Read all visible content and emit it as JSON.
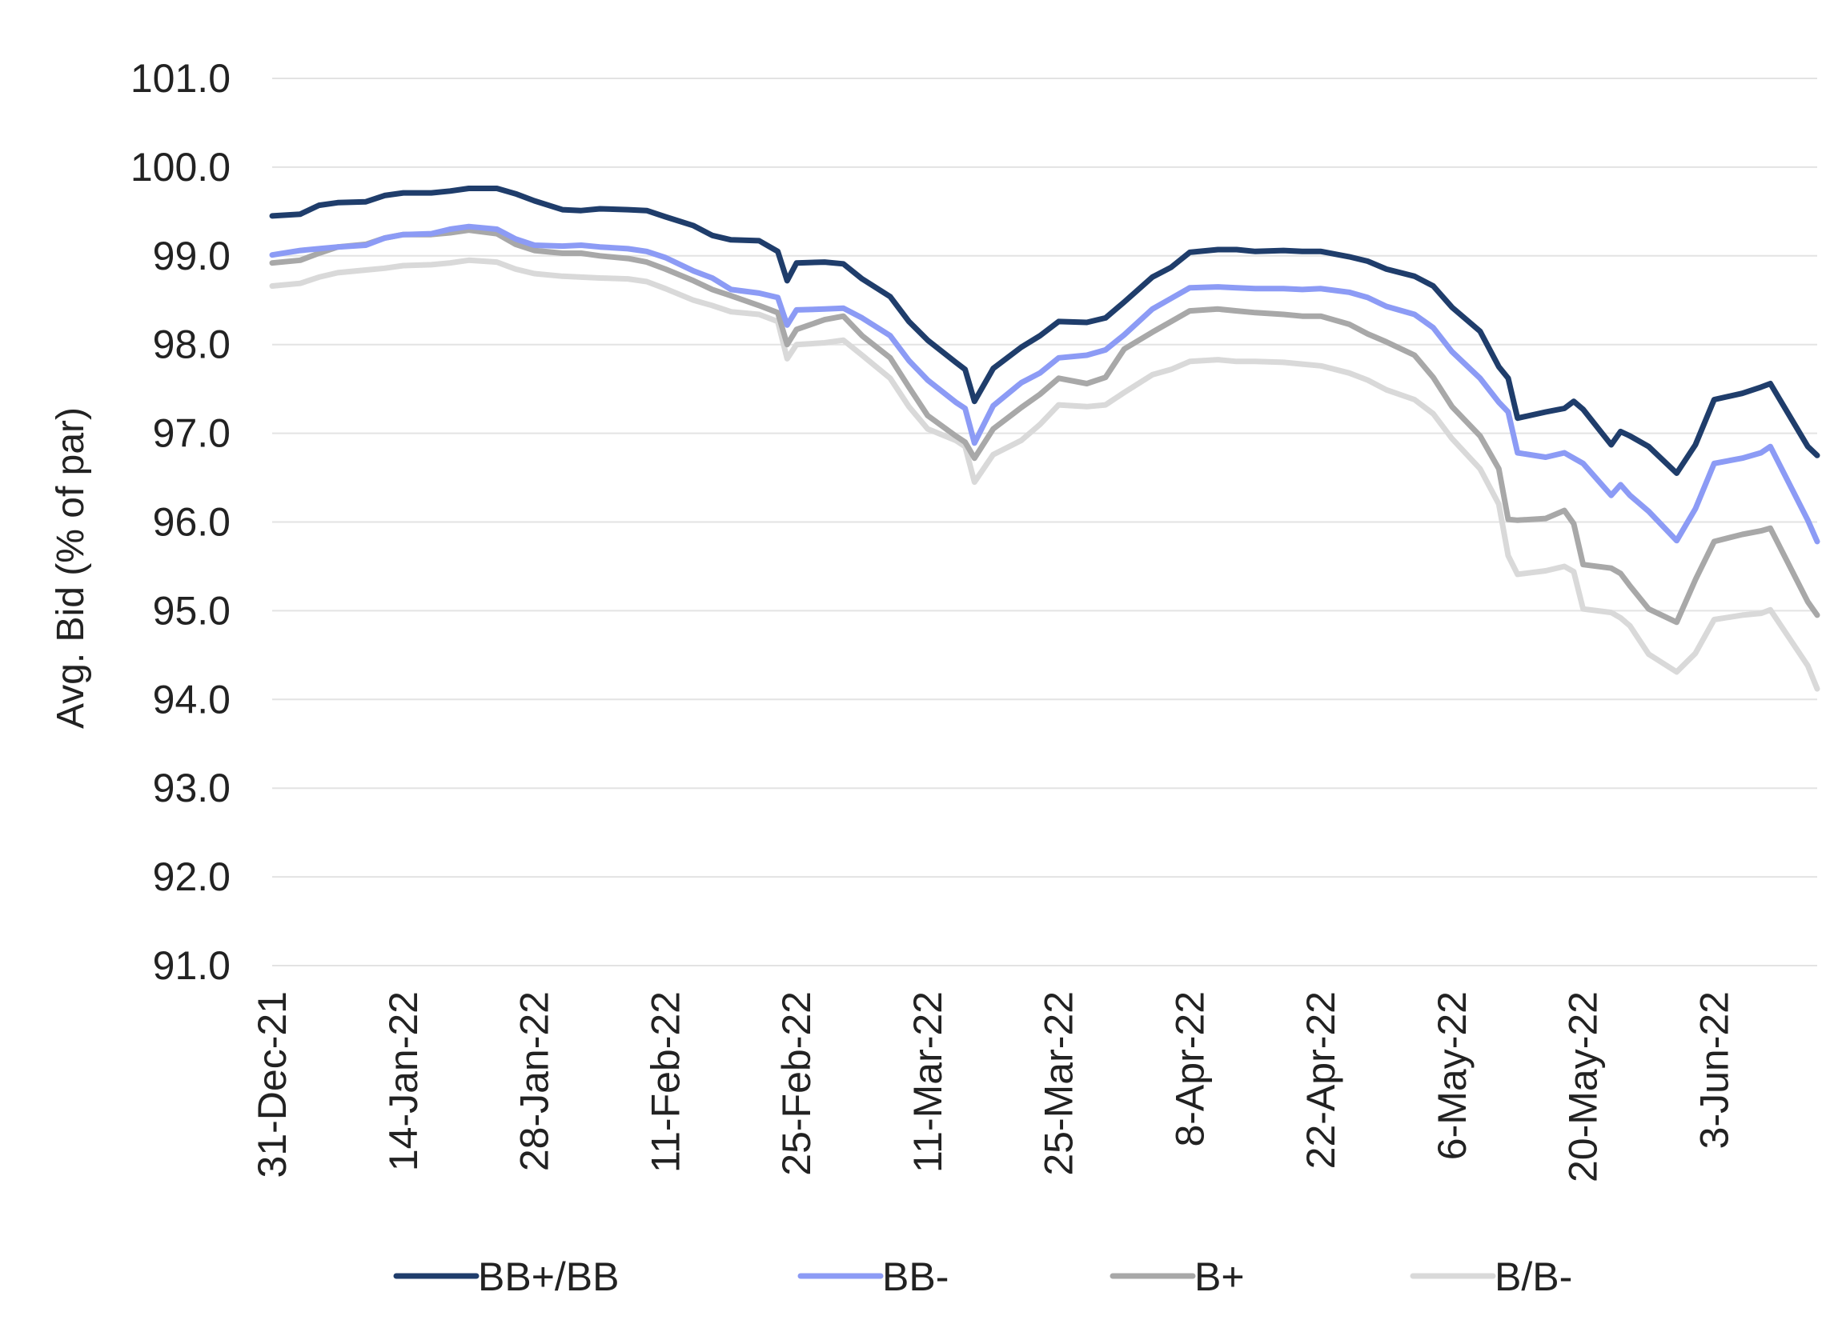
{
  "chart_data": {
    "type": "line",
    "title": "",
    "xlabel": "",
    "ylabel": "Avg. Bid (% of par)",
    "ylim": [
      91.0,
      101.0
    ],
    "yticks": [
      "101.0",
      "100.0",
      "99.0",
      "98.0",
      "97.0",
      "96.0",
      "95.0",
      "94.0",
      "93.0",
      "92.0",
      "91.0"
    ],
    "xlim": [
      "2021-12-31",
      "2022-06-14"
    ],
    "xticks": [
      {
        "date": "2021-12-31",
        "label": "31-Dec-21"
      },
      {
        "date": "2022-01-14",
        "label": "14-Jan-22"
      },
      {
        "date": "2022-01-28",
        "label": "28-Jan-22"
      },
      {
        "date": "2022-02-11",
        "label": "11-Feb-22"
      },
      {
        "date": "2022-02-25",
        "label": "25-Feb-22"
      },
      {
        "date": "2022-03-11",
        "label": "11-Mar-22"
      },
      {
        "date": "2022-03-25",
        "label": "25-Mar-22"
      },
      {
        "date": "2022-04-08",
        "label": "8-Apr-22"
      },
      {
        "date": "2022-04-22",
        "label": "22-Apr-22"
      },
      {
        "date": "2022-05-06",
        "label": "6-May-22"
      },
      {
        "date": "2022-05-20",
        "label": "20-May-22"
      },
      {
        "date": "2022-06-03",
        "label": "3-Jun-22"
      }
    ],
    "grid": true,
    "legend_position": "bottom",
    "x": [
      "2021-12-31",
      "2022-01-03",
      "2022-01-05",
      "2022-01-07",
      "2022-01-10",
      "2022-01-12",
      "2022-01-14",
      "2022-01-17",
      "2022-01-19",
      "2022-01-21",
      "2022-01-24",
      "2022-01-26",
      "2022-01-28",
      "2022-01-31",
      "2022-02-02",
      "2022-02-04",
      "2022-02-07",
      "2022-02-09",
      "2022-02-11",
      "2022-02-14",
      "2022-02-16",
      "2022-02-18",
      "2022-02-21",
      "2022-02-23",
      "2022-02-24",
      "2022-02-25",
      "2022-02-28",
      "2022-03-02",
      "2022-03-04",
      "2022-03-07",
      "2022-03-09",
      "2022-03-11",
      "2022-03-14",
      "2022-03-15",
      "2022-03-16",
      "2022-03-18",
      "2022-03-21",
      "2022-03-23",
      "2022-03-25",
      "2022-03-28",
      "2022-03-30",
      "2022-04-01",
      "2022-04-04",
      "2022-04-06",
      "2022-04-08",
      "2022-04-11",
      "2022-04-13",
      "2022-04-15",
      "2022-04-18",
      "2022-04-20",
      "2022-04-22",
      "2022-04-25",
      "2022-04-27",
      "2022-04-29",
      "2022-05-02",
      "2022-05-04",
      "2022-05-06",
      "2022-05-09",
      "2022-05-11",
      "2022-05-12",
      "2022-05-13",
      "2022-05-16",
      "2022-05-18",
      "2022-05-19",
      "2022-05-20",
      "2022-05-23",
      "2022-05-24",
      "2022-05-25",
      "2022-05-27",
      "2022-05-30",
      "2022-06-01",
      "2022-06-03",
      "2022-06-06",
      "2022-06-08",
      "2022-06-09",
      "2022-06-13",
      "2022-06-14"
    ],
    "series": [
      {
        "name": "BB+/BB",
        "color": "#1f3d6b",
        "values": [
          99.45,
          99.47,
          99.57,
          99.6,
          99.61,
          99.68,
          99.71,
          99.71,
          99.73,
          99.76,
          99.76,
          99.7,
          99.62,
          99.52,
          99.51,
          99.53,
          99.52,
          99.51,
          99.44,
          99.34,
          99.23,
          99.18,
          99.17,
          99.05,
          98.72,
          98.92,
          98.93,
          98.91,
          98.74,
          98.54,
          98.26,
          98.05,
          97.8,
          97.72,
          97.36,
          97.73,
          97.97,
          98.1,
          98.26,
          98.25,
          98.3,
          98.48,
          98.76,
          98.87,
          99.04,
          99.07,
          99.07,
          99.05,
          99.06,
          99.05,
          99.05,
          98.99,
          98.94,
          98.85,
          98.77,
          98.66,
          98.42,
          98.15,
          97.75,
          97.62,
          97.17,
          97.24,
          97.28,
          97.36,
          97.27,
          96.87,
          97.02,
          96.97,
          96.85,
          96.55,
          96.87,
          97.38,
          97.45,
          97.52,
          97.56,
          96.85,
          96.75
        ]
      },
      {
        "name": "BB-",
        "color": "#8c9bf5",
        "values": [
          99.01,
          99.06,
          99.08,
          99.1,
          99.12,
          99.2,
          99.24,
          99.25,
          99.3,
          99.33,
          99.3,
          99.19,
          99.12,
          99.11,
          99.12,
          99.1,
          99.08,
          99.05,
          98.98,
          98.83,
          98.75,
          98.62,
          98.58,
          98.53,
          98.22,
          98.39,
          98.4,
          98.41,
          98.3,
          98.1,
          97.82,
          97.6,
          97.35,
          97.28,
          96.89,
          97.31,
          97.57,
          97.68,
          97.85,
          97.88,
          97.94,
          98.11,
          98.4,
          98.52,
          98.64,
          98.65,
          98.64,
          98.63,
          98.63,
          98.62,
          98.63,
          98.59,
          98.53,
          98.43,
          98.34,
          98.19,
          97.92,
          97.62,
          97.35,
          97.24,
          96.78,
          96.73,
          96.78,
          96.72,
          96.66,
          96.3,
          96.42,
          96.3,
          96.12,
          95.79,
          96.15,
          96.66,
          96.72,
          96.78,
          96.85,
          96.02,
          95.78
        ]
      },
      {
        "name": "B+",
        "color": "#a8a8a8",
        "values": [
          98.92,
          98.95,
          99.03,
          99.1,
          99.13,
          99.2,
          99.24,
          99.24,
          99.26,
          99.29,
          99.25,
          99.13,
          99.06,
          99.03,
          99.03,
          99.0,
          98.97,
          98.93,
          98.85,
          98.72,
          98.62,
          98.55,
          98.44,
          98.36,
          98.0,
          98.17,
          98.28,
          98.32,
          98.1,
          97.85,
          97.52,
          97.2,
          96.97,
          96.9,
          96.72,
          97.05,
          97.29,
          97.44,
          97.62,
          97.56,
          97.63,
          97.95,
          98.14,
          98.26,
          98.38,
          98.4,
          98.38,
          98.36,
          98.34,
          98.32,
          98.32,
          98.23,
          98.12,
          98.03,
          97.88,
          97.63,
          97.3,
          96.97,
          96.6,
          96.03,
          96.02,
          96.04,
          96.13,
          95.98,
          95.52,
          95.48,
          95.42,
          95.28,
          95.02,
          94.87,
          95.35,
          95.78,
          95.86,
          95.9,
          95.93,
          95.1,
          94.95
        ]
      },
      {
        "name": "B/B-",
        "color": "#d9d9d9",
        "values": [
          98.66,
          98.69,
          98.76,
          98.81,
          98.84,
          98.86,
          98.89,
          98.9,
          98.92,
          98.95,
          98.93,
          98.85,
          98.8,
          98.77,
          98.76,
          98.75,
          98.74,
          98.71,
          98.63,
          98.5,
          98.44,
          98.37,
          98.34,
          98.26,
          97.84,
          98.0,
          98.02,
          98.05,
          97.88,
          97.62,
          97.3,
          97.05,
          96.92,
          96.85,
          96.45,
          96.76,
          96.92,
          97.1,
          97.32,
          97.3,
          97.32,
          97.46,
          97.66,
          97.72,
          97.81,
          97.83,
          97.81,
          97.81,
          97.8,
          97.78,
          97.76,
          97.68,
          97.6,
          97.49,
          97.38,
          97.22,
          96.94,
          96.6,
          96.2,
          95.62,
          95.41,
          95.45,
          95.5,
          95.44,
          95.02,
          94.98,
          94.92,
          94.83,
          94.51,
          94.31,
          94.52,
          94.9,
          94.95,
          94.97,
          95.01,
          94.38,
          94.12
        ]
      }
    ]
  }
}
